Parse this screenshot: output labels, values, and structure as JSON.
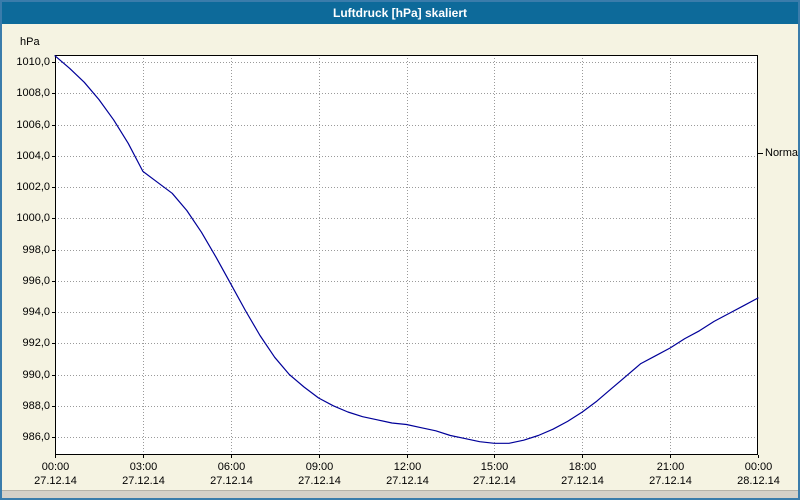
{
  "window": {
    "title": "Luftdruck [hPa] skaliert"
  },
  "colors": {
    "title_bar": "#0d6a9a",
    "window_border": "#3a7cab",
    "background": "#f5f3e2",
    "plot_bg": "#ffffff",
    "grid": "#9a9a9a",
    "axis": "#000000",
    "line": "#000099",
    "scrollbar": "#d4d0c8"
  },
  "chart_data": {
    "type": "line",
    "title": "Luftdruck [hPa] skaliert",
    "ylabel": "hPa",
    "xlabel": "",
    "grid": true,
    "legend_position": "none",
    "xlim": [
      0,
      24
    ],
    "ylim": [
      984.85,
      1010.45
    ],
    "y_ticks": [
      {
        "value": 1010.0,
        "label": "1010,0"
      },
      {
        "value": 1008.0,
        "label": "1008,0"
      },
      {
        "value": 1006.0,
        "label": "1006,0"
      },
      {
        "value": 1004.0,
        "label": "1004,0"
      },
      {
        "value": 1002.0,
        "label": "1002,0"
      },
      {
        "value": 1000.0,
        "label": "1000,0"
      },
      {
        "value": 998.0,
        "label": "998,0"
      },
      {
        "value": 996.0,
        "label": "996,0"
      },
      {
        "value": 994.0,
        "label": "994,0"
      },
      {
        "value": 992.0,
        "label": "992,0"
      },
      {
        "value": 990.0,
        "label": "990,0"
      },
      {
        "value": 988.0,
        "label": "988,0"
      },
      {
        "value": 986.0,
        "label": "986,0"
      }
    ],
    "x_ticks": [
      {
        "hour": 0,
        "time": "00:00",
        "date": "27.12.14"
      },
      {
        "hour": 3,
        "time": "03:00",
        "date": "27.12.14"
      },
      {
        "hour": 6,
        "time": "06:00",
        "date": "27.12.14"
      },
      {
        "hour": 9,
        "time": "09:00",
        "date": "27.12.14"
      },
      {
        "hour": 12,
        "time": "12:00",
        "date": "27.12.14"
      },
      {
        "hour": 15,
        "time": "15:00",
        "date": "27.12.14"
      },
      {
        "hour": 18,
        "time": "18:00",
        "date": "27.12.14"
      },
      {
        "hour": 21,
        "time": "21:00",
        "date": "27.12.14"
      },
      {
        "hour": 24,
        "time": "00:00",
        "date": "28.12.14"
      }
    ],
    "series": [
      {
        "name": "Luftdruck",
        "color": "#000099",
        "x": [
          0,
          0.5,
          1,
          1.5,
          2,
          2.5,
          3,
          3.5,
          4,
          4.5,
          5,
          5.5,
          6,
          6.5,
          7,
          7.5,
          8,
          8.5,
          9,
          9.5,
          10,
          10.5,
          11,
          11.5,
          12,
          12.5,
          13,
          13.5,
          14,
          14.5,
          15,
          15.5,
          16,
          16.5,
          17,
          17.5,
          18,
          18.5,
          19,
          19.5,
          20,
          20.5,
          21,
          21.5,
          22,
          22.5,
          23,
          23.5,
          24
        ],
        "values": [
          1010.4,
          1009.6,
          1008.7,
          1007.6,
          1006.3,
          1004.8,
          1003.0,
          1002.3,
          1001.6,
          1000.5,
          999.1,
          997.5,
          995.8,
          994.1,
          992.5,
          991.1,
          990.0,
          989.2,
          988.5,
          988.0,
          987.6,
          987.3,
          987.1,
          986.9,
          986.8,
          986.6,
          986.4,
          986.1,
          985.9,
          985.7,
          985.6,
          985.6,
          985.8,
          986.1,
          986.5,
          987.0,
          987.6,
          988.3,
          989.1,
          989.9,
          990.7,
          991.2,
          991.7,
          992.3,
          992.8,
          993.4,
          993.9,
          994.4,
          994.9
        ]
      }
    ],
    "annotations": [
      {
        "label": "Normal",
        "value": 1004.2,
        "side": "right"
      }
    ]
  }
}
